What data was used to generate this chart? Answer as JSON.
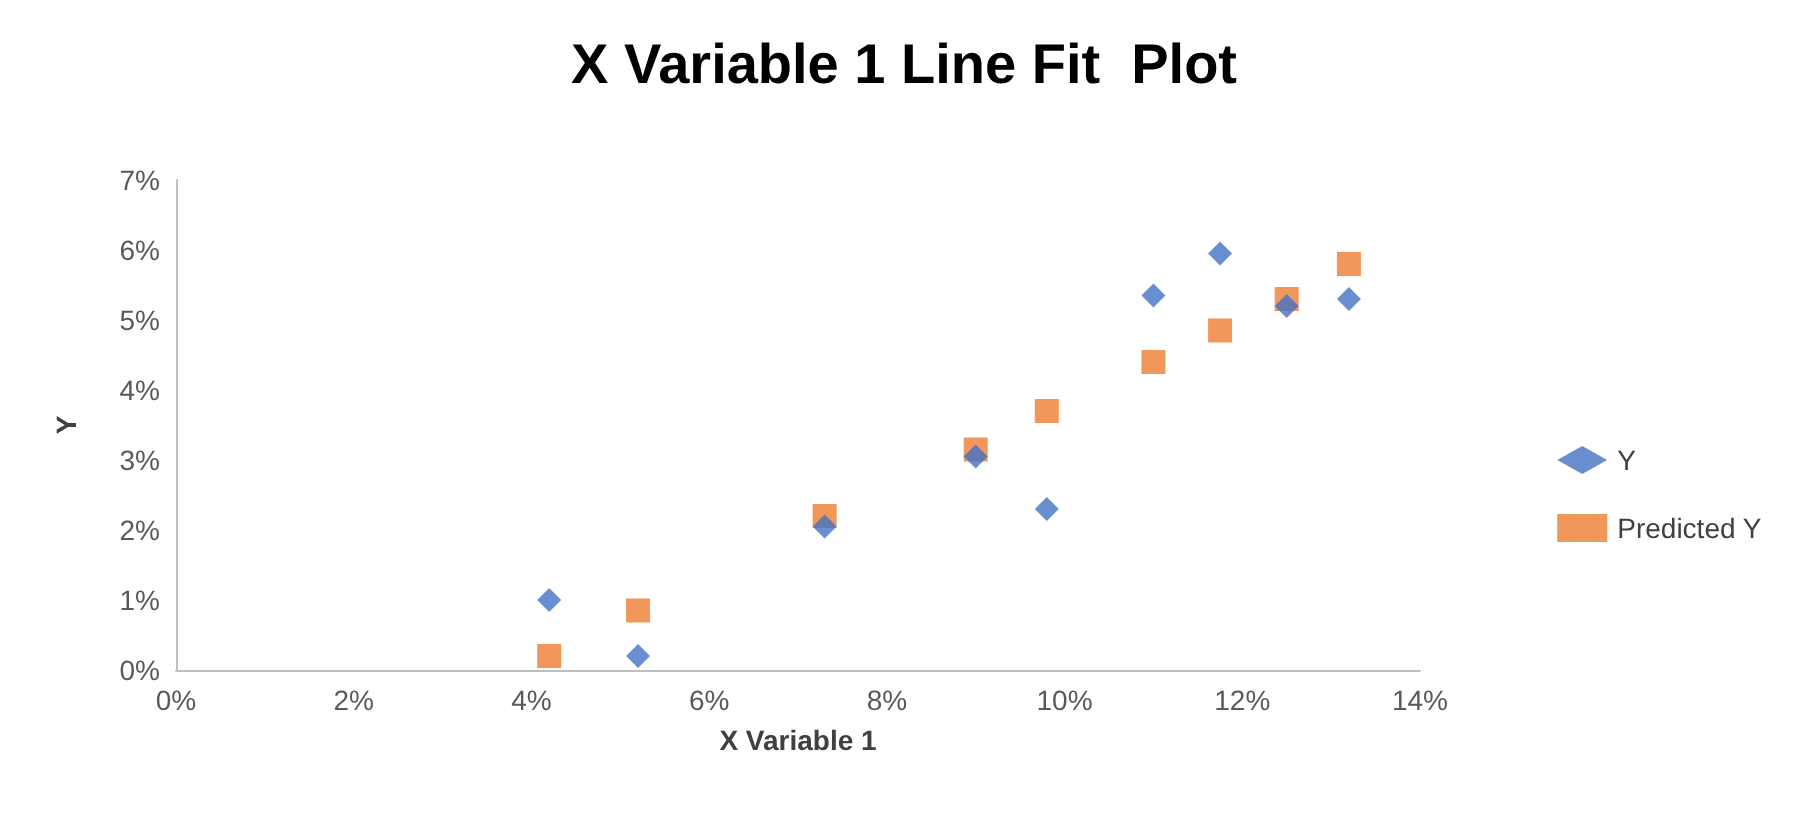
{
  "chart_data": {
    "type": "scatter",
    "title": "X Variable 1 Line Fit  Plot",
    "xlabel": "X Variable 1",
    "ylabel": "Y",
    "x": [
      4.2,
      5.2,
      7.3,
      9.0,
      9.8,
      11.0,
      11.75,
      12.5,
      13.2
    ],
    "series": [
      {
        "name": "Y",
        "color": "#4472c4",
        "marker": "diamond",
        "values": [
          1.0,
          0.2,
          2.05,
          3.05,
          2.3,
          5.35,
          5.95,
          5.2,
          5.3
        ]
      },
      {
        "name": "Predicted Y",
        "color": "#ed7d31",
        "marker": "square",
        "values": [
          0.2,
          0.85,
          2.2,
          3.15,
          3.7,
          4.4,
          4.85,
          5.3,
          5.8
        ]
      }
    ],
    "xlim": [
      0,
      14
    ],
    "xticks": [
      {
        "value": 0,
        "label": "0%"
      },
      {
        "value": 2,
        "label": "2%"
      },
      {
        "value": 4,
        "label": "4%"
      },
      {
        "value": 6,
        "label": "6%"
      },
      {
        "value": 8,
        "label": "8%"
      },
      {
        "value": 10,
        "label": "10%"
      },
      {
        "value": 12,
        "label": "12%"
      },
      {
        "value": 14,
        "label": "14%"
      }
    ],
    "ylim": [
      0,
      7
    ],
    "yticks": [
      {
        "value": 0,
        "label": "0%"
      },
      {
        "value": 1,
        "label": "1%"
      },
      {
        "value": 2,
        "label": "2%"
      },
      {
        "value": 3,
        "label": "3%"
      },
      {
        "value": 4,
        "label": "4%"
      },
      {
        "value": 5,
        "label": "5%"
      },
      {
        "value": 6,
        "label": "6%"
      },
      {
        "value": 7,
        "label": "7%"
      }
    ],
    "grid": false,
    "legend": "right"
  }
}
